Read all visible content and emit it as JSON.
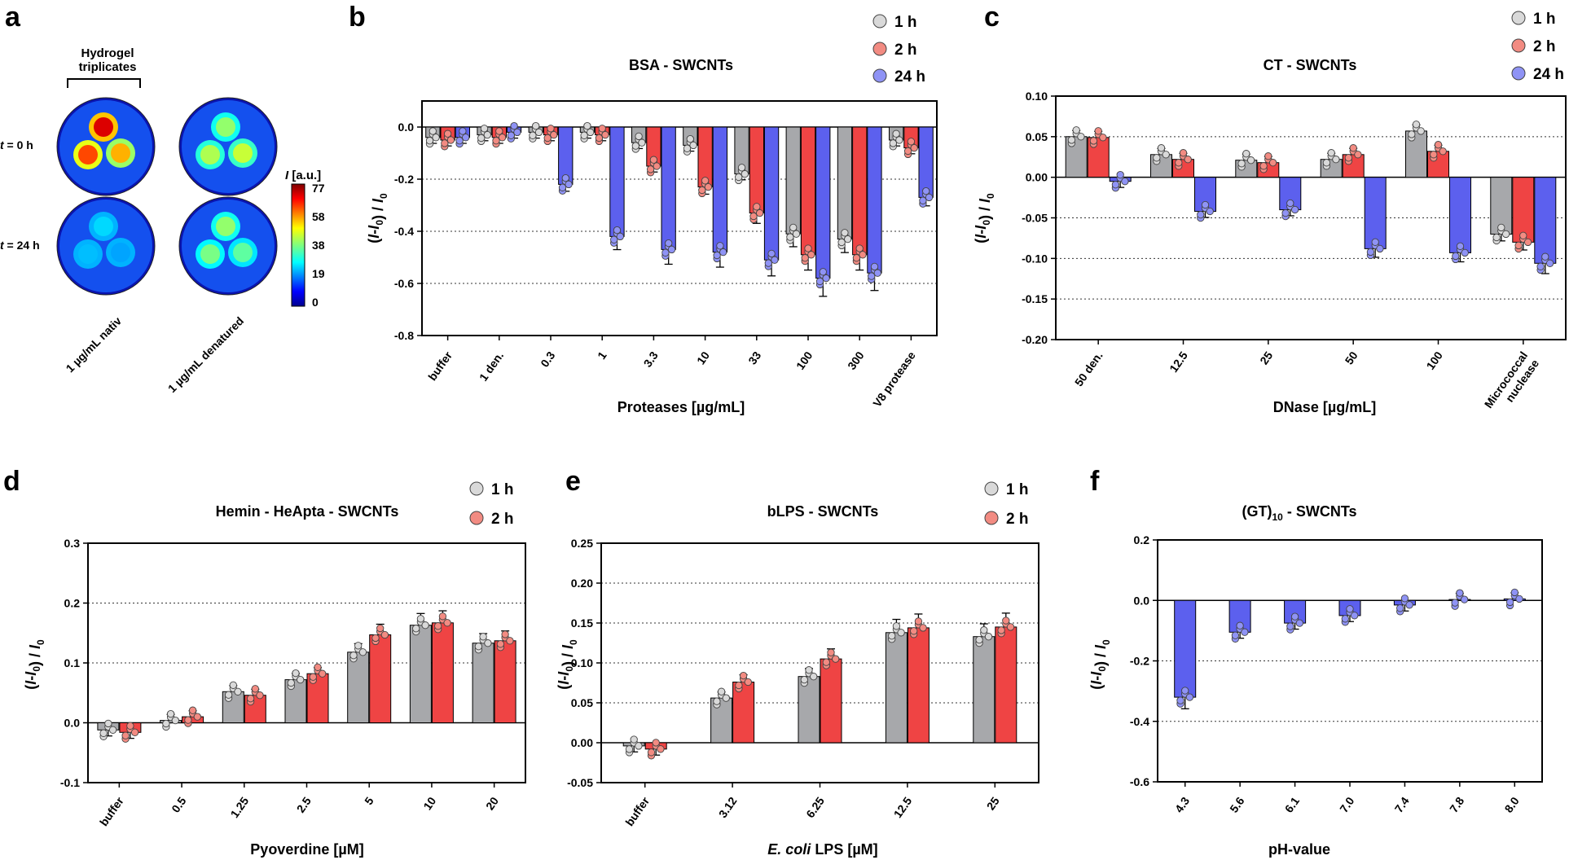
{
  "colors": {
    "s1h": "#a7a8ab",
    "s2h": "#ef4444",
    "s24h": "#5c60ee",
    "pt1h": "#d9d9d9",
    "pt2h": "#f28b82",
    "pt24h": "#8f93f5"
  },
  "panel_a": {
    "letter": "a",
    "header_line1": "Hydrogel",
    "header_line2": "triplicates",
    "row_labels": [
      {
        "t": "t",
        "rest": " = 0 h"
      },
      {
        "t": "t",
        "rest": " = 24 h"
      }
    ],
    "col_labels": [
      "1 µg/mL nativ",
      "1 µg/mL denatured"
    ],
    "colorbar_title_italic": "I",
    "colorbar_title_rest": " [a.u.]",
    "colorbar_ticks": [
      "77",
      "58",
      "38",
      "19",
      "0"
    ],
    "well_intensity": [
      [
        [
          70,
          62,
          54
        ],
        [
          40,
          42,
          44
        ]
      ],
      [
        [
          26,
          24,
          22
        ],
        [
          40,
          38,
          36
        ]
      ]
    ]
  },
  "chart_data": [
    {
      "id": "b",
      "letter": "b",
      "type": "bar",
      "title": "BSA - SWCNTs",
      "xlabel": "Proteases [µg/mL]",
      "ylabel": "(I-I0) / I0",
      "ylim": [
        -0.8,
        0.1
      ],
      "yticks": [
        "0.0",
        "-0.2",
        "-0.4",
        "-0.6",
        "-0.8"
      ],
      "ytick_values": [
        0.0,
        -0.2,
        -0.4,
        -0.6,
        -0.8
      ],
      "gridlines": [
        -0.2,
        -0.4,
        -0.6
      ],
      "categories": [
        "buffer",
        "1 den.",
        "0.3",
        "1",
        "3.3",
        "10",
        "33",
        "100",
        "300",
        "V8 protease"
      ],
      "legend": [
        "1 h",
        "2 h",
        "24 h"
      ],
      "series": [
        {
          "name": "1 h",
          "values": [
            -0.04,
            -0.03,
            -0.02,
            -0.02,
            -0.06,
            -0.07,
            -0.18,
            -0.41,
            -0.43,
            -0.05
          ]
        },
        {
          "name": "2 h",
          "values": [
            -0.05,
            -0.04,
            -0.03,
            -0.03,
            -0.15,
            -0.23,
            -0.33,
            -0.49,
            -0.49,
            -0.08
          ]
        },
        {
          "name": "24 h",
          "values": [
            -0.04,
            -0.02,
            -0.22,
            -0.42,
            -0.47,
            -0.48,
            -0.51,
            -0.58,
            -0.56,
            -0.27
          ]
        }
      ]
    },
    {
      "id": "c",
      "letter": "c",
      "type": "bar",
      "title": "CT - SWCNTs",
      "xlabel": "DNase [µg/mL]",
      "ylabel": "(I-I0) / I0",
      "ylim": [
        -0.2,
        0.1
      ],
      "yticks": [
        "0.10",
        "0.05",
        "0.00",
        "-0.05",
        "-0.10",
        "-0.15",
        "-0.20"
      ],
      "ytick_values": [
        0.1,
        0.05,
        0.0,
        -0.05,
        -0.1,
        -0.15,
        -0.2
      ],
      "gridlines": [
        0.05,
        -0.05,
        -0.1,
        -0.15
      ],
      "categories": [
        "50 den.",
        "12.5",
        "25",
        "50",
        "100",
        "Micrococcal\nnuclease"
      ],
      "legend": [
        "1 h",
        "2 h",
        "24 h"
      ],
      "series": [
        {
          "name": "1 h",
          "values": [
            0.05,
            0.028,
            0.021,
            0.022,
            0.057,
            -0.07
          ]
        },
        {
          "name": "2 h",
          "values": [
            0.049,
            0.022,
            0.018,
            0.028,
            0.032,
            -0.08
          ]
        },
        {
          "name": "24 h",
          "values": [
            -0.005,
            -0.042,
            -0.04,
            -0.088,
            -0.093,
            -0.106
          ]
        }
      ]
    },
    {
      "id": "d",
      "letter": "d",
      "type": "bar",
      "title": "Hemin - HeApta - SWCNTs",
      "xlabel": "Pyoverdine [µM]",
      "ylabel": "(I-I0) / I0",
      "ylim": [
        -0.1,
        0.3
      ],
      "yticks": [
        "0.3",
        "0.2",
        "0.1",
        "0.0",
        "-0.1"
      ],
      "ytick_values": [
        0.3,
        0.2,
        0.1,
        0.0,
        -0.1
      ],
      "gridlines": [
        0.2,
        0.1
      ],
      "categories": [
        "buffer",
        "0.5",
        "1.25",
        "2.5",
        "5",
        "10",
        "20"
      ],
      "legend": [
        "1 h",
        "2 h"
      ],
      "series": [
        {
          "name": "1 h",
          "values": [
            -0.012,
            0.004,
            0.052,
            0.072,
            0.118,
            0.163,
            0.133
          ]
        },
        {
          "name": "2 h",
          "values": [
            -0.016,
            0.01,
            0.046,
            0.082,
            0.147,
            0.167,
            0.137
          ]
        }
      ]
    },
    {
      "id": "e",
      "letter": "e",
      "type": "bar",
      "title": "bLPS - SWCNTs",
      "xlabel_italic": "E. coli",
      "xlabel_rest": " LPS [µM]",
      "ylabel": "(I-I0) / I0",
      "ylim": [
        -0.05,
        0.25
      ],
      "yticks": [
        "0.25",
        "0.20",
        "0.15",
        "0.10",
        "0.05",
        "0.00",
        "-0.05"
      ],
      "ytick_values": [
        0.25,
        0.2,
        0.15,
        0.1,
        0.05,
        0.0,
        -0.05
      ],
      "gridlines": [
        0.2,
        0.15,
        0.1,
        0.05
      ],
      "categories": [
        "buffer",
        "3.12",
        "6.25",
        "12.5",
        "25"
      ],
      "legend": [
        "1 h",
        "2 h"
      ],
      "series": [
        {
          "name": "1 h",
          "values": [
            -0.004,
            0.056,
            0.083,
            0.138,
            0.133
          ]
        },
        {
          "name": "2 h",
          "values": [
            -0.008,
            0.076,
            0.105,
            0.144,
            0.145
          ]
        }
      ]
    },
    {
      "id": "f",
      "letter": "f",
      "type": "bar",
      "title": "(GT)10 - SWCNTs",
      "title_main": "(GT)",
      "title_sub": "10",
      "title_rest": " - SWCNTs",
      "xlabel": "pH-value",
      "ylabel": "(I-I0) / I0",
      "ylim": [
        -0.6,
        0.2
      ],
      "yticks": [
        "0.2",
        "0.0",
        "-0.2",
        "-0.4",
        "-0.6"
      ],
      "ytick_values": [
        0.2,
        0.0,
        -0.2,
        -0.4,
        -0.6
      ],
      "gridlines": [
        -0.2,
        -0.4
      ],
      "categories": [
        "4.3",
        "5.6",
        "6.1",
        "7.0",
        "7.4",
        "7.8",
        "8.0"
      ],
      "legend": [],
      "series": [
        {
          "name": "24 h",
          "values": [
            -0.32,
            -0.105,
            -0.075,
            -0.05,
            -0.015,
            0.003,
            0.005
          ]
        }
      ]
    }
  ]
}
